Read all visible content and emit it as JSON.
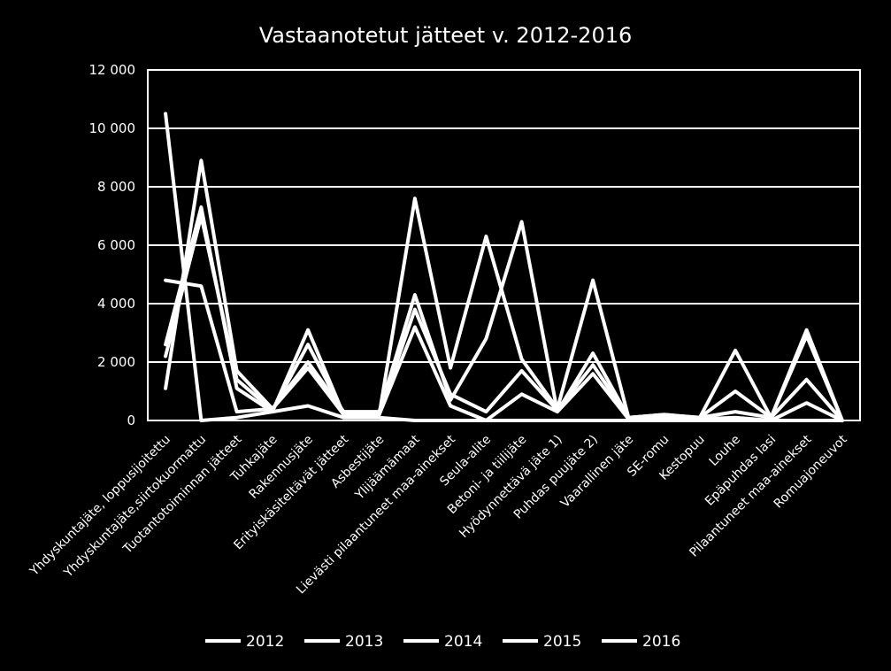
{
  "colors": {
    "background": "#000000",
    "foreground": "#ffffff",
    "grid": "#ffffff"
  },
  "chart_data": {
    "type": "line",
    "title": "Vastaanotetut jätteet v. 2012-2016",
    "xlabel": "",
    "ylabel": "",
    "ylim": [
      0,
      12000
    ],
    "yticks": [
      0,
      2000,
      4000,
      6000,
      8000,
      10000,
      12000
    ],
    "ytick_labels": [
      "0",
      "2 000",
      "4 000",
      "6 000",
      "8 000",
      "10 000",
      "12 000"
    ],
    "grid": true,
    "legend": "bottom",
    "categories": [
      "Yhdyskuntajäte, loppusijoitettu",
      "Yhdyskuntajäte,siirtokuormattu",
      "Tuotantotoiminnan jätteet",
      "Tuhkajäte",
      "Rakennusjäte",
      "Erityiskäsiteltävät jätteet",
      "Asbestijäte",
      "Ylijäämämaat",
      "Lievästi pilaantuneet maa-ainekset",
      "Seula-alite",
      "Betoni- ja tiilijäte",
      "Hyödynnettävä jäte 1)",
      "Puhdas puujäte 2)",
      "Vaarallinen jäte",
      "SE-romu",
      "Kestopuu",
      "Louhe",
      "Epäpuhdas lasi",
      "Pilaantuneet maa-ainekset",
      "Romuajoneuvot"
    ],
    "series": [
      {
        "name": "2012",
        "values": [
          10500,
          0,
          100,
          300,
          500,
          100,
          100,
          0,
          0,
          0,
          0,
          0,
          0,
          0,
          0,
          0,
          0,
          0,
          0,
          0
        ]
      },
      {
        "name": "2013",
        "values": [
          4800,
          4600,
          300,
          400,
          1800,
          200,
          200,
          3200,
          500,
          0,
          900,
          300,
          1600,
          50,
          100,
          50,
          100,
          0,
          600,
          0
        ]
      },
      {
        "name": "2014",
        "values": [
          1100,
          8900,
          1700,
          400,
          2000,
          300,
          300,
          4300,
          700,
          2800,
          6800,
          300,
          2300,
          100,
          200,
          100,
          300,
          100,
          1400,
          0
        ]
      },
      {
        "name": "2015",
        "values": [
          2600,
          7300,
          1100,
          300,
          3100,
          200,
          200,
          7600,
          1800,
          6300,
          2100,
          400,
          4800,
          100,
          200,
          100,
          1000,
          100,
          2900,
          0
        ]
      },
      {
        "name": "2016",
        "values": [
          2200,
          7000,
          1400,
          350,
          2600,
          250,
          250,
          3800,
          900,
          300,
          1700,
          350,
          1900,
          100,
          150,
          100,
          2400,
          100,
          3100,
          0
        ]
      }
    ]
  }
}
